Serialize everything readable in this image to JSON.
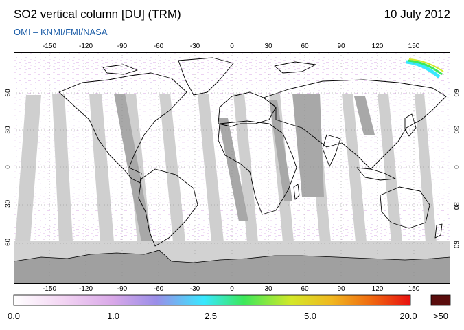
{
  "header": {
    "title": "SO2 vertical column [DU] (TRM)",
    "date": "10 July 2012",
    "credit": "OMI  –  KNMI/FMI/NASA"
  },
  "map": {
    "lon_ticks": [
      "-150",
      "-120",
      "-90",
      "-60",
      "-30",
      "0",
      "30",
      "60",
      "90",
      "120",
      "150"
    ],
    "lat_ticks": [
      "60",
      "30",
      "0",
      "-30",
      "-60"
    ],
    "colors": {
      "ocean_bg": "#ffffff",
      "swath_gap": "#cfcfcf",
      "swath_gap_dark": "#a8a8a8",
      "antarctic": "#a0a0a0",
      "polar_night": "#d2d2d2",
      "coastline": "#000000"
    }
  },
  "colorbar": {
    "labels": [
      "0.0",
      "1.0",
      "2.5",
      "5.0",
      "20.0",
      ">50"
    ],
    "stops": [
      "#ffffff",
      "#f3d6f3",
      "#d9a8e8",
      "#9a8ee8",
      "#38e8ff",
      "#3ce85a",
      "#d4e828",
      "#f0b820",
      "#f06a10",
      "#e81010"
    ],
    "overflow_color": "#5a0d0d"
  }
}
